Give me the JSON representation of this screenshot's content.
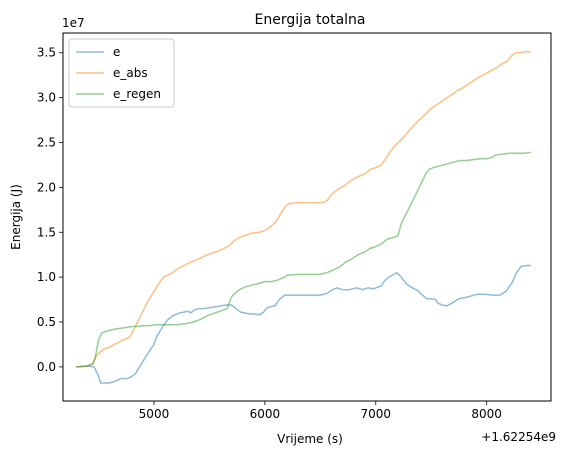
{
  "chart_data": {
    "type": "line",
    "title": "Energija totalna",
    "xlabel": "Vrijeme (s)",
    "ylabel": "Energija (J)",
    "x_offset_label": "+1.62254e9",
    "y_scale_label": "1e7",
    "xlim": [
      4180,
      8580
    ],
    "ylim": [
      -0.38,
      3.72
    ],
    "x_ticks": [
      5000,
      6000,
      7000,
      8000
    ],
    "x_tick_labels": [
      "5000",
      "6000",
      "7000",
      "8000"
    ],
    "y_ticks": [
      0.0,
      0.5,
      1.0,
      1.5,
      2.0,
      2.5,
      3.0,
      3.5
    ],
    "y_tick_labels": [
      "0.0",
      "0.5",
      "1.0",
      "1.5",
      "2.0",
      "2.5",
      "3.0",
      "3.5"
    ],
    "grid": false,
    "legend_position": "upper-left",
    "colors": {
      "e": "#1f77b4",
      "e_abs": "#ff7f0e",
      "e_regen": "#2ca02c"
    },
    "series": [
      {
        "name": "e",
        "points": [
          [
            4300,
            0.0
          ],
          [
            4400,
            0.01
          ],
          [
            4460,
            0.0
          ],
          [
            4500,
            -0.1
          ],
          [
            4520,
            -0.18
          ],
          [
            4560,
            -0.18
          ],
          [
            4600,
            -0.18
          ],
          [
            4650,
            -0.16
          ],
          [
            4700,
            -0.13
          ],
          [
            4760,
            -0.13
          ],
          [
            4780,
            -0.12
          ],
          [
            4830,
            -0.08
          ],
          [
            4870,
            0.0
          ],
          [
            4920,
            0.1
          ],
          [
            4960,
            0.18
          ],
          [
            5000,
            0.25
          ],
          [
            5030,
            0.35
          ],
          [
            5080,
            0.45
          ],
          [
            5120,
            0.52
          ],
          [
            5170,
            0.57
          ],
          [
            5230,
            0.6
          ],
          [
            5270,
            0.61
          ],
          [
            5310,
            0.62
          ],
          [
            5330,
            0.6
          ],
          [
            5360,
            0.63
          ],
          [
            5400,
            0.65
          ],
          [
            5450,
            0.65
          ],
          [
            5500,
            0.66
          ],
          [
            5560,
            0.67
          ],
          [
            5600,
            0.68
          ],
          [
            5650,
            0.69
          ],
          [
            5700,
            0.69
          ],
          [
            5750,
            0.64
          ],
          [
            5780,
            0.61
          ],
          [
            5820,
            0.6
          ],
          [
            5860,
            0.59
          ],
          [
            5900,
            0.59
          ],
          [
            5950,
            0.58
          ],
          [
            5990,
            0.61
          ],
          [
            6020,
            0.66
          ],
          [
            6050,
            0.67
          ],
          [
            6090,
            0.68
          ],
          [
            6130,
            0.75
          ],
          [
            6180,
            0.8
          ],
          [
            6230,
            0.8
          ],
          [
            6300,
            0.8
          ],
          [
            6400,
            0.8
          ],
          [
            6500,
            0.8
          ],
          [
            6560,
            0.82
          ],
          [
            6610,
            0.86
          ],
          [
            6650,
            0.88
          ],
          [
            6700,
            0.86
          ],
          [
            6760,
            0.86
          ],
          [
            6830,
            0.88
          ],
          [
            6880,
            0.86
          ],
          [
            6930,
            0.88
          ],
          [
            6980,
            0.87
          ],
          [
            7020,
            0.89
          ],
          [
            7050,
            0.9
          ],
          [
            7080,
            0.96
          ],
          [
            7120,
            1.0
          ],
          [
            7160,
            1.03
          ],
          [
            7190,
            1.05
          ],
          [
            7230,
            1.0
          ],
          [
            7280,
            0.92
          ],
          [
            7330,
            0.88
          ],
          [
            7380,
            0.85
          ],
          [
            7420,
            0.8
          ],
          [
            7460,
            0.76
          ],
          [
            7500,
            0.76
          ],
          [
            7540,
            0.75
          ],
          [
            7560,
            0.71
          ],
          [
            7600,
            0.69
          ],
          [
            7640,
            0.68
          ],
          [
            7700,
            0.72
          ],
          [
            7750,
            0.76
          ],
          [
            7800,
            0.77
          ],
          [
            7860,
            0.79
          ],
          [
            7920,
            0.81
          ],
          [
            7980,
            0.81
          ],
          [
            8060,
            0.8
          ],
          [
            8120,
            0.8
          ],
          [
            8180,
            0.85
          ],
          [
            8230,
            0.94
          ],
          [
            8270,
            1.05
          ],
          [
            8310,
            1.12
          ],
          [
            8360,
            1.13
          ],
          [
            8400,
            1.13
          ]
        ]
      },
      {
        "name": "e_abs",
        "points": [
          [
            4300,
            0.0
          ],
          [
            4400,
            0.01
          ],
          [
            4450,
            0.03
          ],
          [
            4480,
            0.12
          ],
          [
            4510,
            0.16
          ],
          [
            4550,
            0.2
          ],
          [
            4600,
            0.22
          ],
          [
            4660,
            0.26
          ],
          [
            4720,
            0.3
          ],
          [
            4780,
            0.33
          ],
          [
            4820,
            0.42
          ],
          [
            4860,
            0.52
          ],
          [
            4900,
            0.62
          ],
          [
            4940,
            0.72
          ],
          [
            4980,
            0.8
          ],
          [
            5020,
            0.88
          ],
          [
            5060,
            0.96
          ],
          [
            5100,
            1.01
          ],
          [
            5140,
            1.03
          ],
          [
            5180,
            1.06
          ],
          [
            5220,
            1.1
          ],
          [
            5270,
            1.13
          ],
          [
            5320,
            1.16
          ],
          [
            5380,
            1.19
          ],
          [
            5430,
            1.22
          ],
          [
            5480,
            1.25
          ],
          [
            5530,
            1.27
          ],
          [
            5580,
            1.29
          ],
          [
            5630,
            1.32
          ],
          [
            5680,
            1.35
          ],
          [
            5720,
            1.4
          ],
          [
            5770,
            1.44
          ],
          [
            5830,
            1.47
          ],
          [
            5880,
            1.49
          ],
          [
            5950,
            1.5
          ],
          [
            6000,
            1.52
          ],
          [
            6050,
            1.56
          ],
          [
            6100,
            1.62
          ],
          [
            6140,
            1.7
          ],
          [
            6180,
            1.78
          ],
          [
            6220,
            1.82
          ],
          [
            6300,
            1.83
          ],
          [
            6400,
            1.83
          ],
          [
            6520,
            1.83
          ],
          [
            6560,
            1.85
          ],
          [
            6600,
            1.92
          ],
          [
            6660,
            1.98
          ],
          [
            6720,
            2.02
          ],
          [
            6780,
            2.08
          ],
          [
            6840,
            2.12
          ],
          [
            6900,
            2.15
          ],
          [
            6950,
            2.2
          ],
          [
            7000,
            2.22
          ],
          [
            7050,
            2.25
          ],
          [
            7090,
            2.32
          ],
          [
            7130,
            2.4
          ],
          [
            7170,
            2.46
          ],
          [
            7220,
            2.52
          ],
          [
            7260,
            2.57
          ],
          [
            7300,
            2.63
          ],
          [
            7350,
            2.7
          ],
          [
            7400,
            2.76
          ],
          [
            7450,
            2.82
          ],
          [
            7500,
            2.88
          ],
          [
            7560,
            2.93
          ],
          [
            7620,
            2.98
          ],
          [
            7680,
            3.03
          ],
          [
            7740,
            3.08
          ],
          [
            7800,
            3.12
          ],
          [
            7860,
            3.17
          ],
          [
            7920,
            3.22
          ],
          [
            7980,
            3.26
          ],
          [
            8040,
            3.3
          ],
          [
            8100,
            3.34
          ],
          [
            8140,
            3.38
          ],
          [
            8180,
            3.4
          ],
          [
            8220,
            3.46
          ],
          [
            8260,
            3.5
          ],
          [
            8300,
            3.5
          ],
          [
            8340,
            3.51
          ],
          [
            8400,
            3.51
          ]
        ]
      },
      {
        "name": "e_regen",
        "points": [
          [
            4300,
            0.0
          ],
          [
            4400,
            0.01
          ],
          [
            4450,
            0.04
          ],
          [
            4470,
            0.1
          ],
          [
            4500,
            0.3
          ],
          [
            4530,
            0.38
          ],
          [
            4580,
            0.4
          ],
          [
            4640,
            0.42
          ],
          [
            4700,
            0.43
          ],
          [
            4760,
            0.44
          ],
          [
            4800,
            0.45
          ],
          [
            4850,
            0.45
          ],
          [
            4900,
            0.46
          ],
          [
            4960,
            0.46
          ],
          [
            5020,
            0.47
          ],
          [
            5100,
            0.47
          ],
          [
            5200,
            0.47
          ],
          [
            5280,
            0.48
          ],
          [
            5360,
            0.5
          ],
          [
            5420,
            0.53
          ],
          [
            5480,
            0.57
          ],
          [
            5550,
            0.6
          ],
          [
            5620,
            0.63
          ],
          [
            5660,
            0.65
          ],
          [
            5680,
            0.72
          ],
          [
            5700,
            0.78
          ],
          [
            5730,
            0.82
          ],
          [
            5770,
            0.86
          ],
          [
            5820,
            0.89
          ],
          [
            5880,
            0.91
          ],
          [
            5950,
            0.93
          ],
          [
            6000,
            0.95
          ],
          [
            6060,
            0.95
          ],
          [
            6120,
            0.97
          ],
          [
            6180,
            1.0
          ],
          [
            6200,
            1.02
          ],
          [
            6300,
            1.03
          ],
          [
            6400,
            1.03
          ],
          [
            6500,
            1.03
          ],
          [
            6560,
            1.05
          ],
          [
            6620,
            1.08
          ],
          [
            6680,
            1.12
          ],
          [
            6730,
            1.17
          ],
          [
            6780,
            1.2
          ],
          [
            6840,
            1.25
          ],
          [
            6900,
            1.28
          ],
          [
            6950,
            1.32
          ],
          [
            7000,
            1.34
          ],
          [
            7050,
            1.37
          ],
          [
            7100,
            1.42
          ],
          [
            7150,
            1.44
          ],
          [
            7200,
            1.46
          ],
          [
            7230,
            1.6
          ],
          [
            7280,
            1.72
          ],
          [
            7320,
            1.82
          ],
          [
            7360,
            1.92
          ],
          [
            7400,
            2.02
          ],
          [
            7450,
            2.15
          ],
          [
            7480,
            2.2
          ],
          [
            7520,
            2.22
          ],
          [
            7580,
            2.24
          ],
          [
            7640,
            2.26
          ],
          [
            7700,
            2.28
          ],
          [
            7760,
            2.3
          ],
          [
            7820,
            2.3
          ],
          [
            7880,
            2.31
          ],
          [
            7940,
            2.32
          ],
          [
            8000,
            2.32
          ],
          [
            8040,
            2.33
          ],
          [
            8080,
            2.36
          ],
          [
            8140,
            2.37
          ],
          [
            8200,
            2.38
          ],
          [
            8280,
            2.38
          ],
          [
            8340,
            2.38
          ],
          [
            8400,
            2.39
          ]
        ]
      }
    ]
  }
}
